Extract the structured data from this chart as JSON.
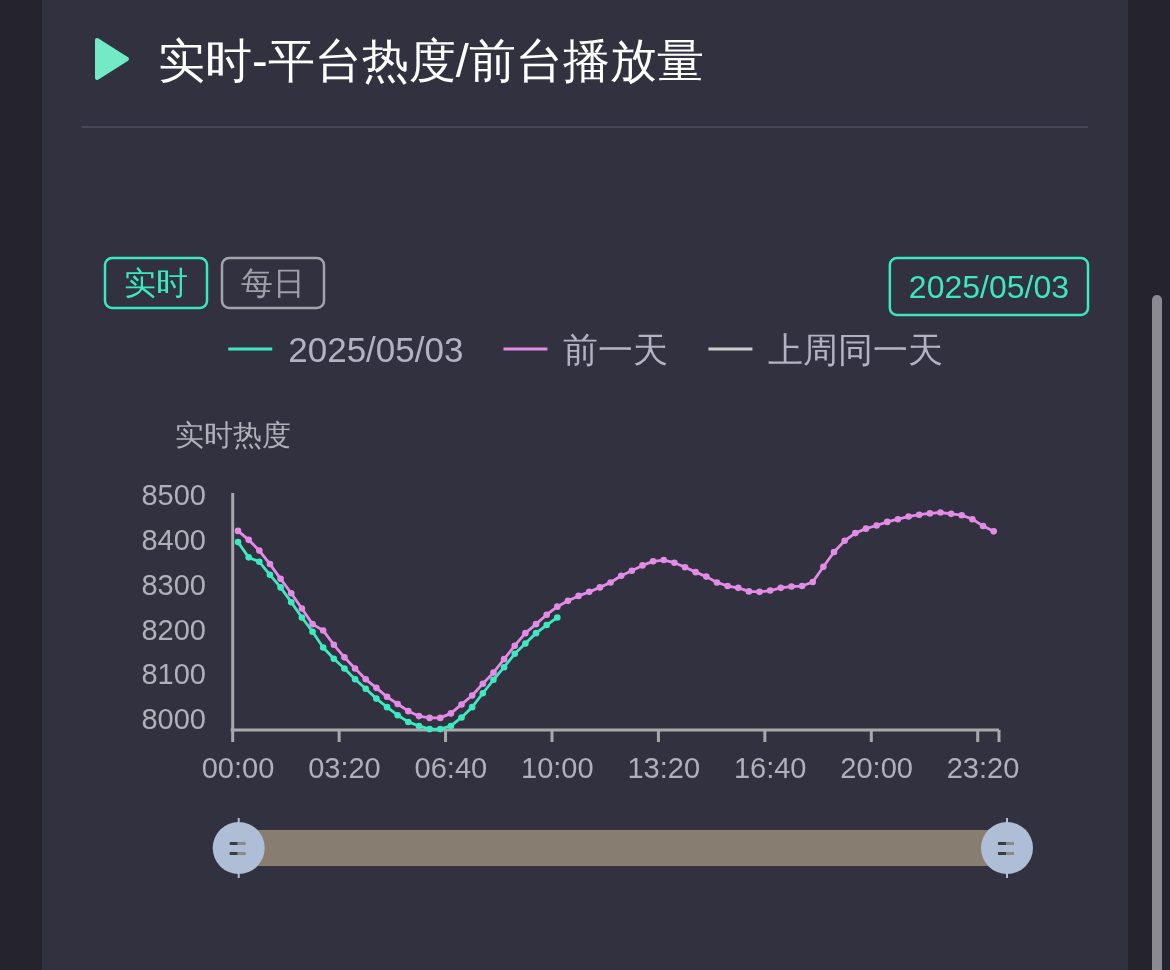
{
  "chart_data": {
    "type": "line",
    "title": "实时-平台热度/前台播放量",
    "ylabel": "实时热度",
    "annotations": [
      "实时",
      "每日",
      "2025/05/03"
    ],
    "categories": [
      "00:00",
      null,
      null,
      null,
      null,
      null,
      null,
      null,
      null,
      null,
      "03:20",
      null,
      null,
      null,
      null,
      null,
      null,
      null,
      null,
      null,
      "06:40",
      null,
      null,
      null,
      null,
      null,
      null,
      null,
      null,
      null,
      "10:00",
      null,
      null,
      null,
      null,
      null,
      null,
      null,
      null,
      null,
      "13:20",
      null,
      null,
      null,
      null,
      null,
      null,
      null,
      null,
      null,
      "16:40",
      null,
      null,
      null,
      null,
      null,
      null,
      null,
      null,
      null,
      "20:00",
      null,
      null,
      null,
      null,
      null,
      null,
      null,
      null,
      null,
      "23:20",
      null
    ],
    "series": [
      {
        "name": "2025/05/03",
        "color": "#3de9c1",
        "values": [
          8395,
          8361,
          8351,
          8322,
          8294,
          8261,
          8227,
          8195,
          8160,
          8135,
          8113,
          8089,
          8068,
          8046,
          8027,
          8009,
          7994,
          7985,
          7978,
          7978,
          7985,
          8004,
          8027,
          8058,
          8088,
          8116,
          8146,
          8169,
          8192,
          8210,
          8227,
          null,
          null,
          null,
          null,
          null,
          null,
          null,
          null,
          null,
          null,
          null,
          null,
          null,
          null,
          null,
          null,
          null,
          null,
          null,
          null,
          null,
          null,
          null,
          null,
          null,
          null,
          null,
          null,
          null,
          null,
          null,
          null,
          null,
          null,
          null,
          null,
          null,
          null,
          null,
          null,
          null
        ]
      },
      {
        "name": "前一天",
        "color": "#e28ce6",
        "values": [
          8420,
          8400,
          8376,
          8346,
          8313,
          8281,
          8247,
          8212,
          8198,
          8166,
          8138,
          8113,
          8089,
          8070,
          8050,
          8034,
          8018,
          8007,
          8003,
          8003,
          8013,
          8033,
          8053,
          8079,
          8104,
          8134,
          8164,
          8192,
          8212,
          8233,
          8251,
          8264,
          8275,
          8284,
          8294,
          8305,
          8320,
          8331,
          8343,
          8352,
          8355,
          8349,
          8339,
          8328,
          8318,
          8305,
          8297,
          8293,
          8285,
          8284,
          8287,
          8293,
          8296,
          8297,
          8306,
          8340,
          8373,
          8398,
          8415,
          8425,
          8432,
          8440,
          8446,
          8452,
          8456,
          8459,
          8461,
          8458,
          8455,
          8446,
          8431,
          8419
        ]
      },
      {
        "name": "上周同一天",
        "color": "#cccccc",
        "values": [
          null,
          null,
          null,
          null,
          null,
          null,
          null,
          null,
          null,
          null,
          null,
          null,
          null,
          null,
          null,
          null,
          null,
          null,
          null,
          null,
          null,
          null,
          null,
          null,
          null,
          null,
          null,
          null,
          null,
          null,
          null,
          null,
          null,
          null,
          null,
          null,
          null,
          null,
          null,
          null,
          null,
          null,
          null,
          null,
          null,
          null,
          null,
          null,
          null,
          null,
          null,
          null,
          null,
          null,
          null,
          null,
          null,
          null,
          null,
          null,
          null,
          null,
          null,
          null,
          null,
          null,
          null,
          null,
          null,
          null,
          null,
          null
        ]
      }
    ],
    "ylim": [
      7976,
      8500
    ],
    "yticks": [
      8000,
      8100,
      8200,
      8300,
      8400,
      8500
    ],
    "legend": "top",
    "marker": "circle"
  }
}
